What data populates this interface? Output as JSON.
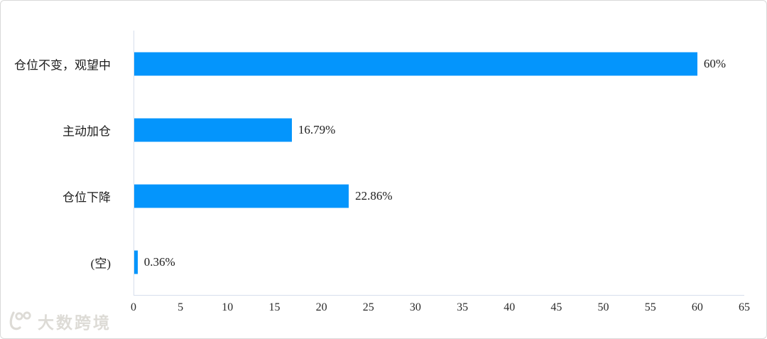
{
  "watermark": {
    "text": "大数跨境",
    "icon": "smiley-100-logo"
  },
  "chart_data": {
    "type": "bar",
    "orientation": "horizontal",
    "title": "",
    "categories": [
      "仓位不变，观望中",
      "主动加仓",
      "仓位下降",
      "(空)"
    ],
    "values": [
      60,
      16.79,
      22.86,
      0.36
    ],
    "value_labels": [
      "60%",
      "16.79%",
      "22.86%",
      "0.36%"
    ],
    "xlim": [
      0,
      65
    ],
    "x_ticks": [
      0,
      5,
      10,
      15,
      20,
      25,
      30,
      35,
      40,
      45,
      50,
      55,
      60,
      65
    ],
    "bar_color": "#0495FC",
    "axis_line_color": "#D6DEEC",
    "text_color": "#1d1d1d",
    "grid": false,
    "legend": false
  }
}
